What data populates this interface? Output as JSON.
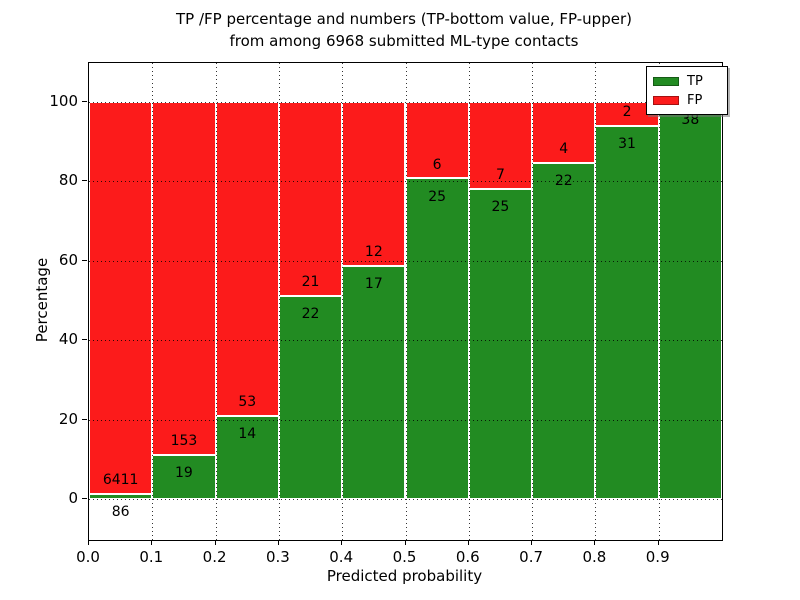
{
  "title_line1": "TP /FP percentage and numbers (TP-bottom value, FP-upper)",
  "title_line2": "from among 6968 submitted ML-type contacts",
  "chart_data": {
    "type": "bar",
    "stacked": true,
    "normalized_to_percent": true,
    "title": "TP /FP percentage and numbers (TP-bottom value, FP-upper)\nfrom among 6968 submitted ML-type contacts",
    "xlabel": "Predicted probability",
    "ylabel": "Percentage",
    "x_tick_labels": [
      "0.0",
      "0.1",
      "0.2",
      "0.3",
      "0.4",
      "0.5",
      "0.6",
      "0.7",
      "0.8",
      "0.9"
    ],
    "y_tick_values": [
      0,
      20,
      40,
      60,
      80,
      100
    ],
    "xlim": [
      0.0,
      1.0
    ],
    "ylim": [
      -10.3,
      109.7
    ],
    "grid": "dotted",
    "bin_width": 0.1,
    "categories": [
      "0.0-0.1",
      "0.1-0.2",
      "0.2-0.3",
      "0.3-0.4",
      "0.4-0.5",
      "0.5-0.6",
      "0.6-0.7",
      "0.7-0.8",
      "0.8-0.9",
      "0.9-1.0"
    ],
    "series": [
      {
        "name": "TP",
        "color": "#228B22",
        "counts": [
          86,
          19,
          14,
          22,
          17,
          25,
          25,
          22,
          31,
          38
        ]
      },
      {
        "name": "FP",
        "color": "#FC1B1B",
        "counts": [
          6411,
          153,
          53,
          21,
          12,
          6,
          7,
          4,
          2,
          0
        ]
      }
    ],
    "tp_percent_heights": [
      1.3,
      11.0,
      20.9,
      51.2,
      58.6,
      80.6,
      78.1,
      84.6,
      93.9,
      100.0
    ],
    "legend": {
      "position": "upper right",
      "entries": [
        {
          "label": "TP",
          "color": "#228B22"
        },
        {
          "label": "FP",
          "color": "#FC1B1B"
        }
      ]
    }
  },
  "colors": {
    "tp": "#228B22",
    "fp": "#FC1B1B",
    "background": "#FFFFFF",
    "grid": "#000000",
    "text": "#000000"
  }
}
